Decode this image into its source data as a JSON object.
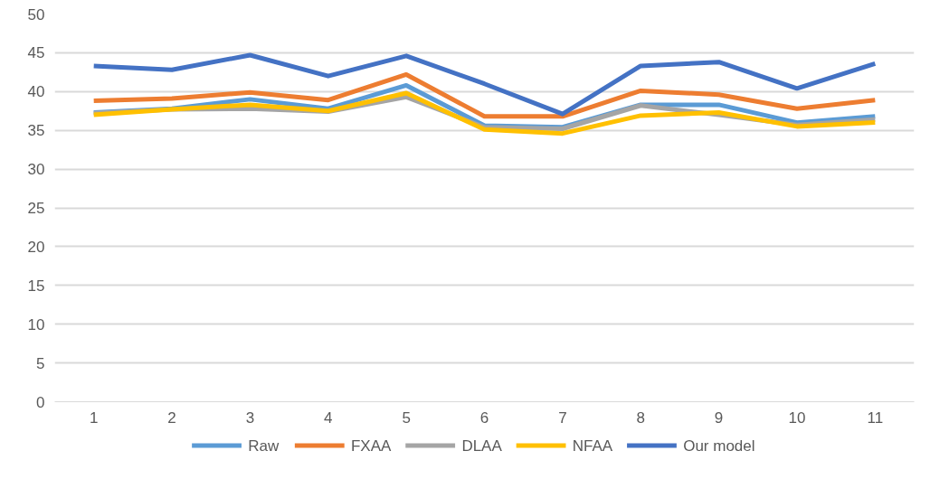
{
  "chart_data": {
    "type": "line",
    "categories": [
      "1",
      "2",
      "3",
      "4",
      "5",
      "6",
      "7",
      "8",
      "9",
      "10",
      "11"
    ],
    "series": [
      {
        "name": "Raw",
        "color": "#5b9bd5",
        "values": [
          37.3,
          37.8,
          39.0,
          37.8,
          40.8,
          35.6,
          35.4,
          38.3,
          38.3,
          36.0,
          36.8
        ]
      },
      {
        "name": "FXAA",
        "color": "#ed7d31",
        "values": [
          38.8,
          39.1,
          39.9,
          38.9,
          42.2,
          36.8,
          36.8,
          40.1,
          39.6,
          37.8,
          38.9
        ]
      },
      {
        "name": "DLAA",
        "color": "#a5a5a5",
        "values": [
          37.2,
          37.7,
          37.8,
          37.4,
          39.3,
          35.4,
          35.2,
          38.2,
          37.0,
          35.7,
          36.4
        ]
      },
      {
        "name": "NFAA",
        "color": "#ffc000",
        "values": [
          37.0,
          37.7,
          38.3,
          37.5,
          39.8,
          35.1,
          34.6,
          36.9,
          37.3,
          35.5,
          36.0
        ]
      },
      {
        "name": "Our model",
        "color": "#4472c4",
        "values": [
          43.3,
          42.8,
          44.7,
          42.0,
          44.6,
          41.0,
          37.1,
          43.3,
          43.8,
          40.4,
          43.6
        ]
      }
    ],
    "ylim": [
      0,
      50
    ],
    "yticks": [
      0,
      5,
      10,
      15,
      20,
      25,
      30,
      35,
      40,
      45,
      50
    ],
    "grid": "y",
    "legend": "bottom",
    "marker": "none",
    "line_style": "solid"
  }
}
